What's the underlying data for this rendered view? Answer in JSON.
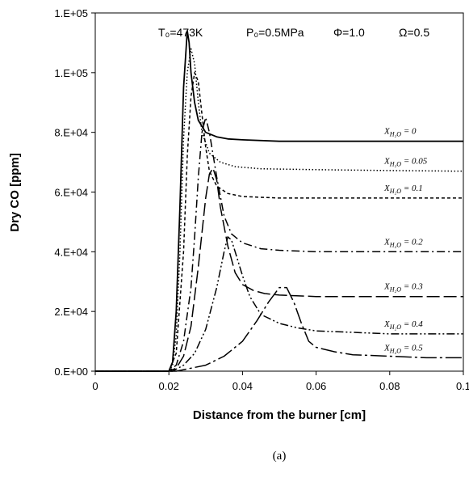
{
  "chart_data": {
    "type": "line",
    "title": "",
    "conditions": [
      "T₀=473K",
      "P₀=0.5MPa",
      "Φ=1.0",
      "Ω=0.5"
    ],
    "xlabel": "Distance from the burner [cm]",
    "ylabel": "Dry CO [ppm]",
    "caption": "(a)",
    "xlim": [
      0,
      0.1
    ],
    "ylim": [
      0,
      120000
    ],
    "x_ticks": [
      0,
      0.02,
      0.04,
      0.06,
      0.08,
      0.1
    ],
    "x_tick_labels": [
      "0",
      "0.02",
      "0.04",
      "0.06",
      "0.08",
      "0.1"
    ],
    "y_ticks": [
      0,
      20000,
      40000,
      60000,
      80000,
      100000,
      120000
    ],
    "y_tick_labels": [
      "0.E+00",
      "2.E+04",
      "4.E+04",
      "6.E+04",
      "8.E+04",
      "1.E+05",
      "1.E+05"
    ],
    "grid": false,
    "series": [
      {
        "name": "X_H2O = 0",
        "label_base": "X",
        "label_sub": "H₂O",
        "label_value": " = 0",
        "dash": "solid",
        "x": [
          0,
          0.02,
          0.021,
          0.022,
          0.023,
          0.024,
          0.025,
          0.0255,
          0.026,
          0.027,
          0.028,
          0.03,
          0.033,
          0.036,
          0.04,
          0.05,
          0.06,
          0.08,
          0.1
        ],
        "y": [
          0,
          0,
          3000,
          20000,
          55000,
          95000,
          114000,
          110000,
          100000,
          90000,
          84000,
          80000,
          78500,
          77800,
          77500,
          77000,
          77000,
          77000,
          77000
        ]
      },
      {
        "name": "X_H2O = 0.05",
        "label_base": "X",
        "label_sub": "H₂O",
        "label_value": " = 0.05",
        "dash": "dot",
        "x": [
          0,
          0.02,
          0.021,
          0.022,
          0.023,
          0.024,
          0.025,
          0.026,
          0.027,
          0.028,
          0.029,
          0.031,
          0.034,
          0.038,
          0.045,
          0.06,
          0.08,
          0.1
        ],
        "y": [
          0,
          0,
          2000,
          12000,
          40000,
          78000,
          100000,
          108000,
          103000,
          90000,
          80000,
          73000,
          70000,
          68500,
          67800,
          67500,
          67200,
          67000
        ]
      },
      {
        "name": "X_H2O = 0.1",
        "label_base": "X",
        "label_sub": "H₂O",
        "label_value": " = 0.1",
        "dash": "shortdash",
        "x": [
          0,
          0.02,
          0.022,
          0.024,
          0.025,
          0.026,
          0.027,
          0.028,
          0.029,
          0.03,
          0.031,
          0.033,
          0.036,
          0.04,
          0.05,
          0.06,
          0.08,
          0.1
        ],
        "y": [
          0,
          0,
          6000,
          40000,
          72000,
          92000,
          100000,
          97000,
          86000,
          75000,
          67000,
          62000,
          59500,
          58500,
          58000,
          58000,
          58000,
          58000
        ]
      },
      {
        "name": "X_H2O = 0.2",
        "label_base": "X",
        "label_sub": "H₂O",
        "label_value": " = 0.2",
        "dash": "dashdot",
        "x": [
          0,
          0.02,
          0.022,
          0.024,
          0.026,
          0.027,
          0.028,
          0.029,
          0.03,
          0.031,
          0.033,
          0.035,
          0.037,
          0.04,
          0.045,
          0.05,
          0.06,
          0.08,
          0.1
        ],
        "y": [
          0,
          0,
          2000,
          10000,
          28000,
          45000,
          65000,
          80000,
          85000,
          80000,
          65000,
          52000,
          46000,
          43000,
          41000,
          40500,
          40000,
          40000,
          40000
        ]
      },
      {
        "name": "X_H2O = 0.3",
        "label_base": "X",
        "label_sub": "H₂O",
        "label_value": " = 0.3",
        "dash": "longdash",
        "x": [
          0,
          0.02,
          0.022,
          0.024,
          0.026,
          0.028,
          0.03,
          0.031,
          0.032,
          0.033,
          0.034,
          0.036,
          0.038,
          0.04,
          0.043,
          0.046,
          0.05,
          0.06,
          0.08,
          0.1
        ],
        "y": [
          0,
          0,
          1000,
          5000,
          15000,
          35000,
          58000,
          66000,
          68000,
          64000,
          55000,
          42000,
          33000,
          29000,
          27000,
          26000,
          25500,
          25000,
          25000,
          25000
        ]
      },
      {
        "name": "X_H2O = 0.4",
        "label_base": "X",
        "label_sub": "H₂O",
        "label_value": " = 0.4",
        "dash": "dashdotdot",
        "x": [
          0,
          0.021,
          0.024,
          0.027,
          0.03,
          0.033,
          0.035,
          0.036,
          0.037,
          0.038,
          0.04,
          0.042,
          0.045,
          0.05,
          0.055,
          0.06,
          0.07,
          0.08,
          0.1
        ],
        "y": [
          0,
          0,
          2000,
          6000,
          14000,
          28000,
          40000,
          45000,
          44000,
          40000,
          32000,
          25000,
          19000,
          16000,
          14500,
          13500,
          13000,
          12500,
          12500
        ]
      },
      {
        "name": "X_H2O = 0.5",
        "label_base": "X",
        "label_sub": "H₂O",
        "label_value": " = 0.5",
        "dash": "longdashdot",
        "x": [
          0,
          0.022,
          0.026,
          0.03,
          0.035,
          0.04,
          0.044,
          0.047,
          0.05,
          0.052,
          0.054,
          0.056,
          0.058,
          0.06,
          0.065,
          0.07,
          0.08,
          0.09,
          0.1
        ],
        "y": [
          0,
          0,
          1000,
          2000,
          5000,
          10000,
          17000,
          23000,
          28000,
          28000,
          23000,
          16000,
          10000,
          8000,
          6500,
          5500,
          5000,
          4500,
          4500
        ]
      }
    ]
  }
}
